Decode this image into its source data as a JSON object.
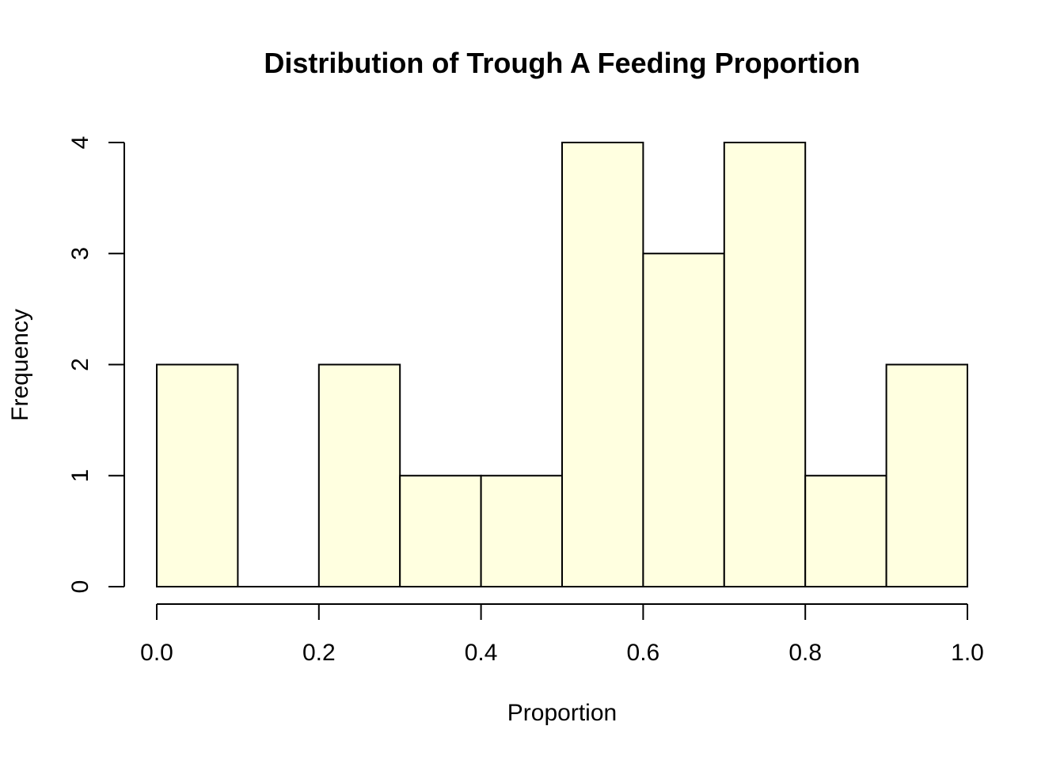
{
  "chart_data": {
    "type": "bar",
    "title": "Distribution of Trough A Feeding Proportion",
    "xlabel": "Proportion",
    "ylabel": "Frequency",
    "bins": [
      {
        "start": 0.0,
        "end": 0.1,
        "count": 2
      },
      {
        "start": 0.1,
        "end": 0.2,
        "count": 0
      },
      {
        "start": 0.2,
        "end": 0.3,
        "count": 2
      },
      {
        "start": 0.3,
        "end": 0.4,
        "count": 1
      },
      {
        "start": 0.4,
        "end": 0.5,
        "count": 1
      },
      {
        "start": 0.5,
        "end": 0.6,
        "count": 4
      },
      {
        "start": 0.6,
        "end": 0.7,
        "count": 3
      },
      {
        "start": 0.7,
        "end": 0.8,
        "count": 4
      },
      {
        "start": 0.8,
        "end": 0.9,
        "count": 1
      },
      {
        "start": 0.9,
        "end": 1.0,
        "count": 2
      }
    ],
    "xlim": [
      0.0,
      1.0
    ],
    "ylim": [
      0,
      4
    ],
    "x_ticks": [
      "0.0",
      "0.2",
      "0.4",
      "0.6",
      "0.8",
      "1.0"
    ],
    "y_ticks": [
      "0",
      "1",
      "2",
      "3",
      "4"
    ],
    "grid": false,
    "legend": "none",
    "bar_fill_color": "#FFFFE0",
    "bar_stroke_color": "#000000"
  }
}
